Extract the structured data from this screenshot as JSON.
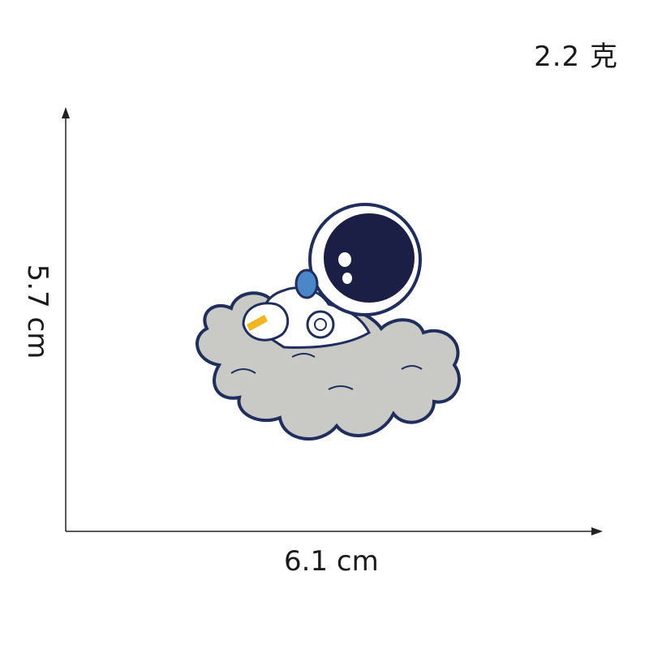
{
  "weight_label": "2.2 克",
  "dimensions": {
    "width_label": "6.1 cm",
    "height_label": "5.7 cm"
  },
  "product": {
    "image_icon": "astronaut-on-cloud-patch",
    "colors": {
      "outline_navy": "#1f2e5c",
      "helmet_visor": "#1c1f45",
      "cloud_gray": "#c9cac6",
      "blue_accent": "#4a87c9",
      "yellow_accent": "#f1b51f"
    }
  }
}
